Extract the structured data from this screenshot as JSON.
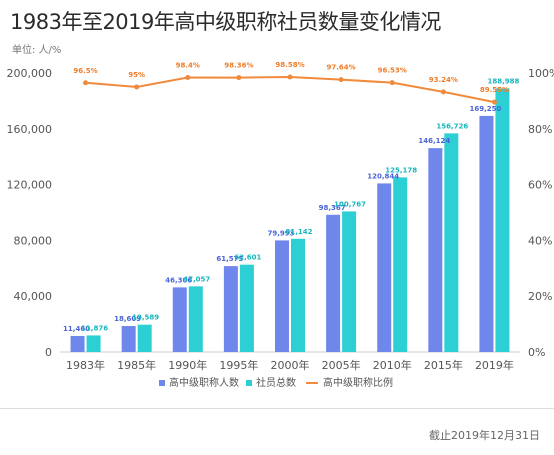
{
  "chart_data": {
    "type": "bar+line",
    "title": "1983年至2019年高中级职称社员数量变化情况",
    "unit_label": "单位: 人/%",
    "categories": [
      "1983年",
      "1985年",
      "1990年",
      "1995年",
      "2000年",
      "2005年",
      "2010年",
      "2015年",
      "2019年"
    ],
    "series": [
      {
        "name": "高中级职称人数",
        "type": "bar",
        "axis": "left",
        "color": "#6f86ea",
        "values": [
          11460,
          18609,
          46306,
          61575,
          79993,
          98367,
          120844,
          146124,
          169250
        ],
        "labels": [
          "11,460",
          "18,609",
          "46,306",
          "61,575",
          "79,993",
          "98,367",
          "120,844",
          "146,124",
          "169,250"
        ]
      },
      {
        "name": "社员总数",
        "type": "bar",
        "axis": "left",
        "color": "#2ccfd3",
        "values": [
          11876,
          19589,
          47057,
          62601,
          81142,
          100767,
          125178,
          156726,
          188988
        ],
        "labels": [
          "11,876",
          "19,589",
          "47,057",
          "62,601",
          "81,142",
          "100,767",
          "125,178",
          "156,726",
          "188,988"
        ]
      },
      {
        "name": "高中级职称比例",
        "type": "line",
        "axis": "right",
        "color": "#f08a3c",
        "values": [
          96.5,
          95,
          98.4,
          98.36,
          98.58,
          97.64,
          96.53,
          93.24,
          89.55
        ],
        "labels": [
          "96.5%",
          "95%",
          "98.4%",
          "98.36%",
          "98.58%",
          "97.64%",
          "96.53%",
          "93.24%",
          "89.55%"
        ]
      }
    ],
    "y_left": {
      "min": 0,
      "max": 200000,
      "ticks": [
        "0",
        "40,000",
        "80,000",
        "120,000",
        "160,000",
        "200,000"
      ]
    },
    "y_right": {
      "min": 0,
      "max": 100,
      "ticks": [
        "0%",
        "20%",
        "40%",
        "60%",
        "80%",
        "100%"
      ]
    },
    "grid": false,
    "legend_position": "bottom",
    "label_colors": {
      "bar1": "#4a63d8",
      "bar2": "#17b6be",
      "line": "#ee7d2b"
    },
    "axis_color": "#cccccc",
    "text_color": "#555555"
  },
  "footer": "截止2019年12月31日"
}
